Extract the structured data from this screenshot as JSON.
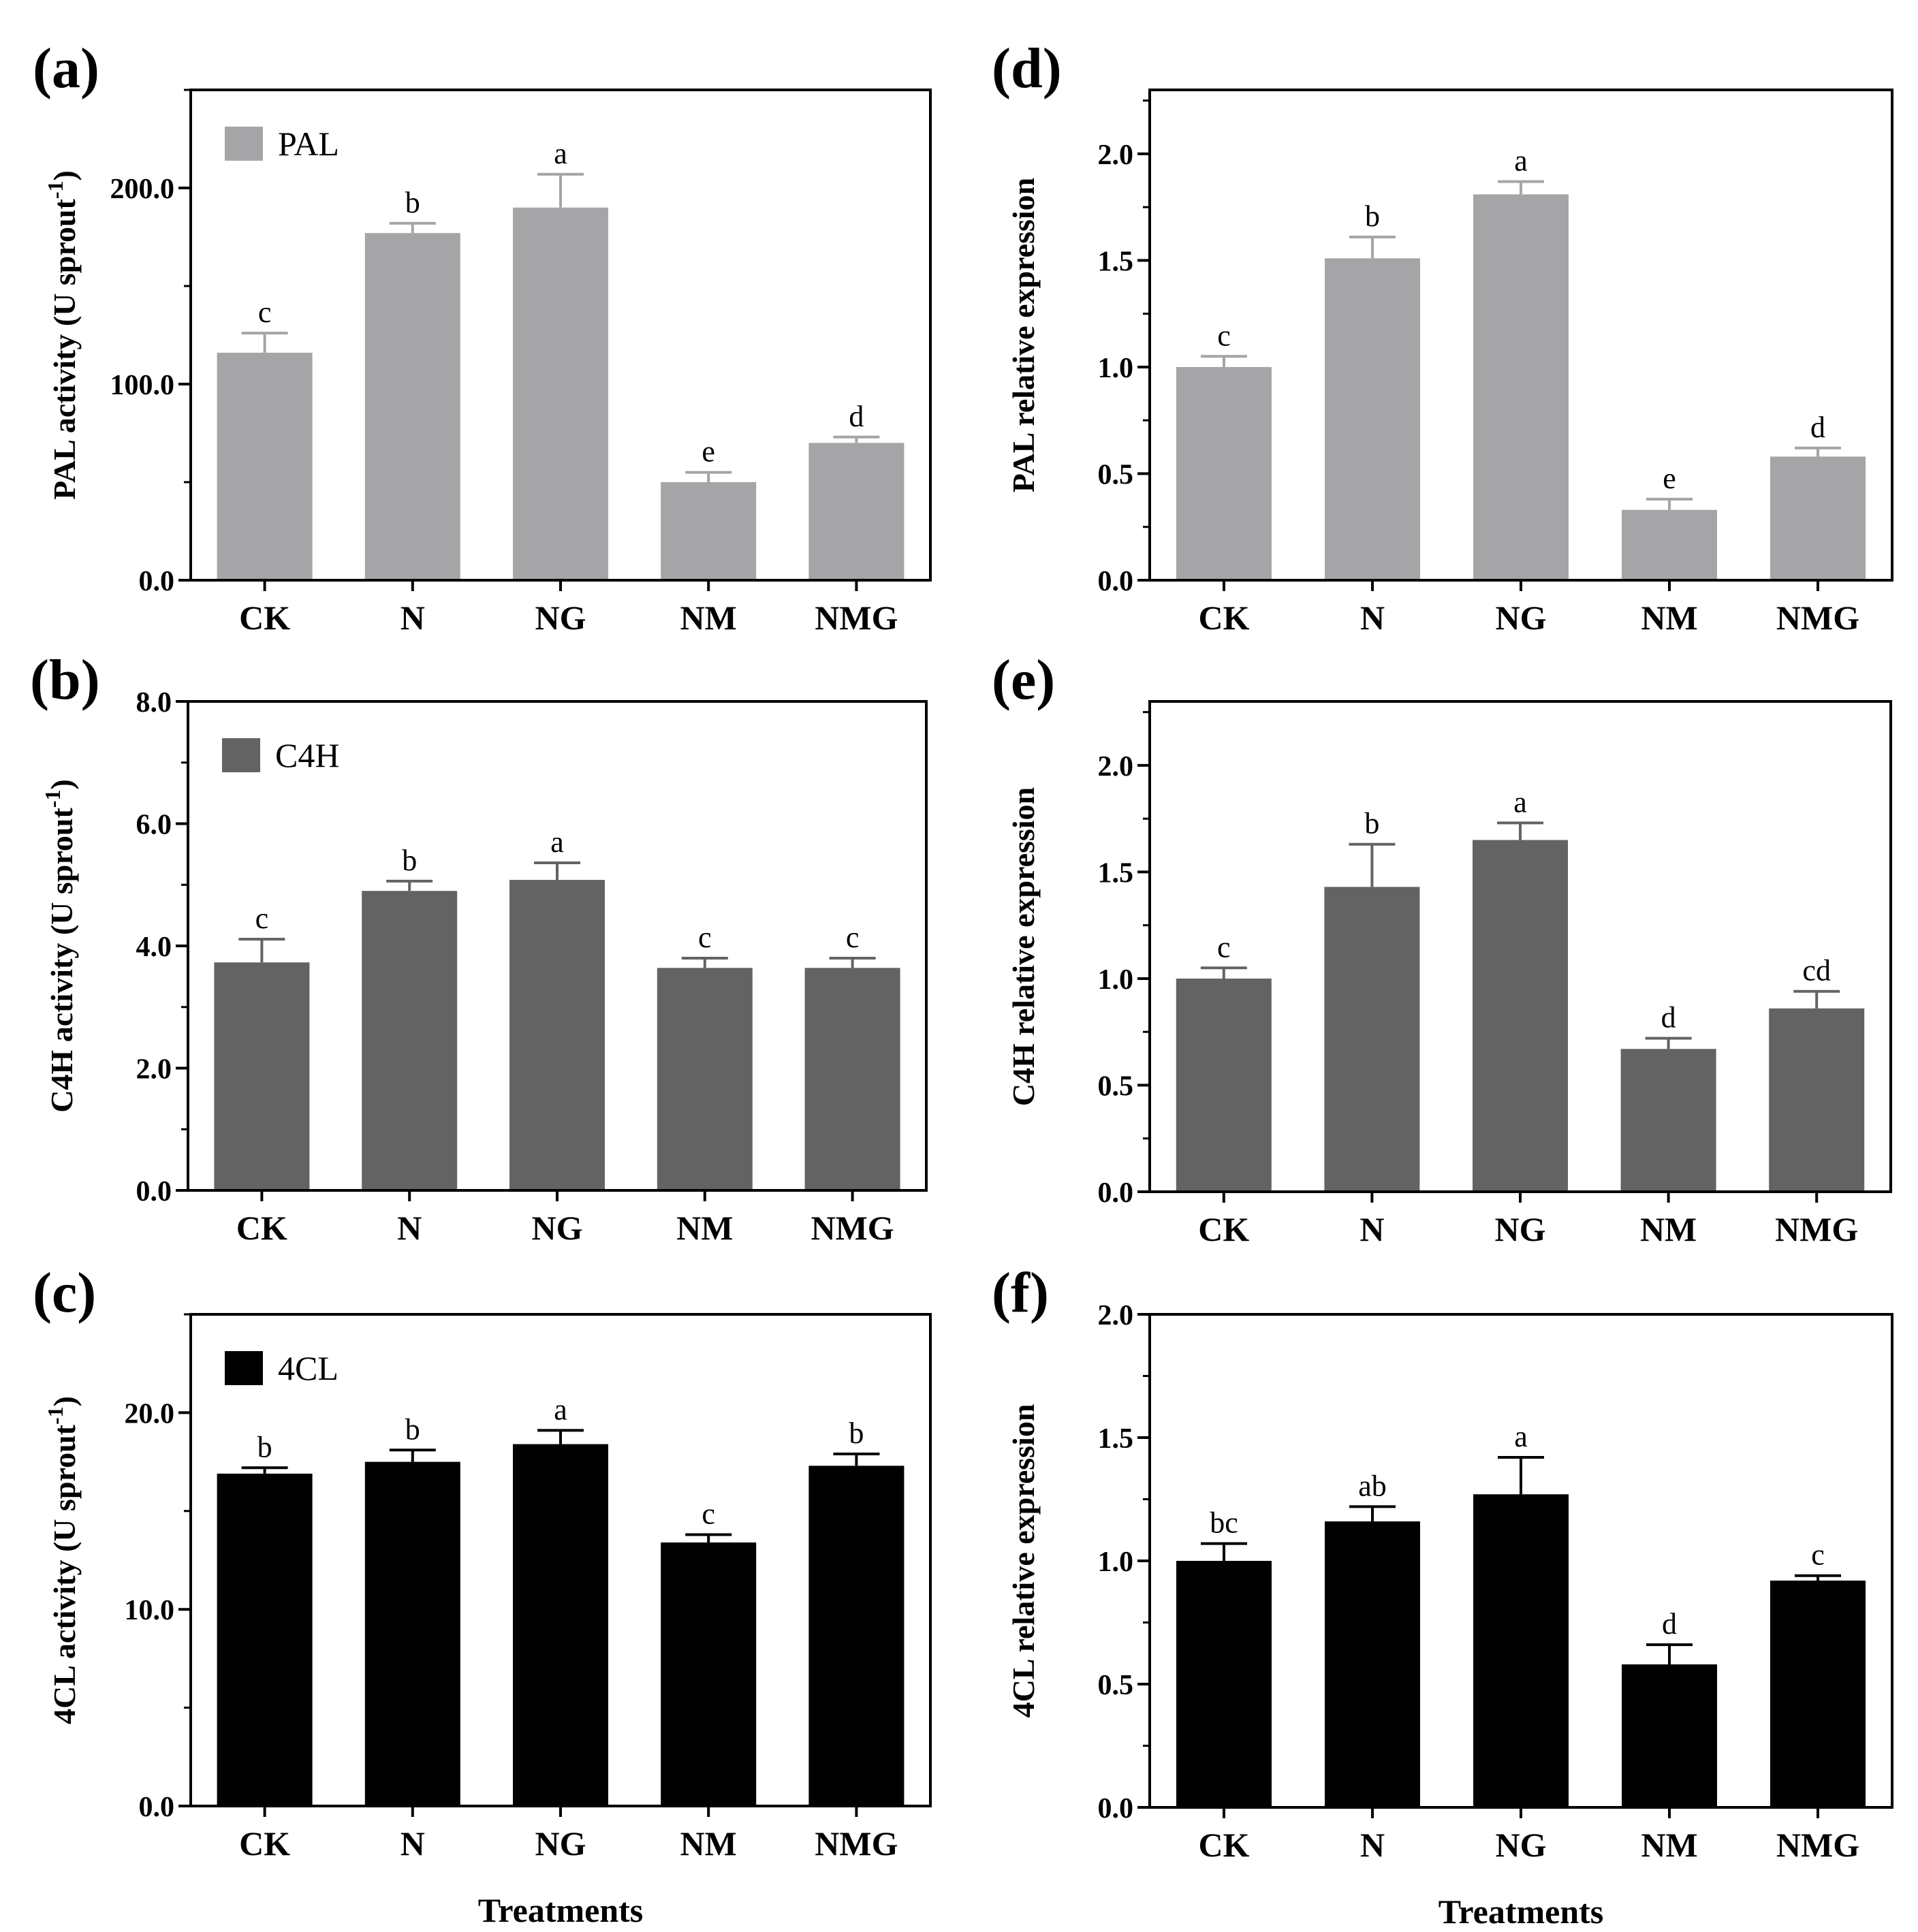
{
  "chart_data": [
    {
      "panel": "(a)",
      "type": "bar",
      "legend": "PAL",
      "color": "#a5a5a7",
      "categories": [
        "CK",
        "N",
        "NG",
        "NM",
        "NMG"
      ],
      "values": [
        116,
        177,
        190,
        50,
        70
      ],
      "errors": [
        10,
        5,
        17,
        5,
        3
      ],
      "significance": [
        "c",
        "b",
        "a",
        "e",
        "d"
      ],
      "ylabel": "PAL activity (U sprout",
      "ylabel_sup": "-1",
      "ylabel_close": ")",
      "ylim": [
        0,
        250
      ],
      "yticks": [
        0,
        100,
        200
      ],
      "ytick_labels": [
        "0.0",
        "100.0",
        "200.0"
      ],
      "minor_step": 50,
      "xlabel": ""
    },
    {
      "panel": "(b)",
      "type": "bar",
      "legend": "C4H",
      "color": "#636363",
      "categories": [
        "CK",
        "N",
        "NG",
        "NM",
        "NMG"
      ],
      "values": [
        3.73,
        4.9,
        5.08,
        3.64,
        3.64
      ],
      "errors": [
        0.38,
        0.16,
        0.28,
        0.16,
        0.16
      ],
      "significance": [
        "c",
        "b",
        "a",
        "c",
        "c"
      ],
      "ylabel": "C4H activity (U sprout",
      "ylabel_sup": "-1",
      "ylabel_close": ")",
      "ylim": [
        0,
        8
      ],
      "yticks": [
        0,
        2,
        4,
        6,
        8
      ],
      "ytick_labels": [
        "0.0",
        "2.0",
        "4.0",
        "6.0",
        "8.0"
      ],
      "minor_step": 1,
      "xlabel": ""
    },
    {
      "panel": "(c)",
      "type": "bar",
      "legend": "4CL",
      "color": "#000000",
      "categories": [
        "CK",
        "N",
        "NG",
        "NM",
        "NMG"
      ],
      "values": [
        16.9,
        17.5,
        18.4,
        13.4,
        17.3
      ],
      "errors": [
        0.3,
        0.6,
        0.7,
        0.4,
        0.6
      ],
      "significance": [
        "b",
        "b",
        "a",
        "c",
        "b"
      ],
      "ylabel": "4CL activity (U sprout",
      "ylabel_sup": "-1",
      "ylabel_close": ")",
      "ylim": [
        0,
        25
      ],
      "yticks": [
        0,
        10,
        20
      ],
      "ytick_labels": [
        "0.0",
        "10.0",
        "20.0"
      ],
      "minor_step": 5,
      "xlabel": "Treatments"
    },
    {
      "panel": "(d)",
      "type": "bar",
      "legend": "",
      "color": "#a5a5a7",
      "categories": [
        "CK",
        "N",
        "NG",
        "NM",
        "NMG"
      ],
      "values": [
        1.0,
        1.51,
        1.81,
        0.33,
        0.58
      ],
      "errors": [
        0.05,
        0.1,
        0.06,
        0.05,
        0.04
      ],
      "significance": [
        "c",
        "b",
        "a",
        "e",
        "d"
      ],
      "ylabel": "PAL relative expression",
      "ylabel_sup": "",
      "ylabel_close": "",
      "ylim": [
        0,
        2.3
      ],
      "yticks": [
        0,
        0.5,
        1.0,
        1.5,
        2.0
      ],
      "ytick_labels": [
        "0.0",
        "0.5",
        "1.0",
        "1.5",
        "2.0"
      ],
      "minor_step": 0.25,
      "xlabel": ""
    },
    {
      "panel": "(e)",
      "type": "bar",
      "legend": "",
      "color": "#636363",
      "categories": [
        "CK",
        "N",
        "NG",
        "NM",
        "NMG"
      ],
      "values": [
        1.0,
        1.43,
        1.65,
        0.67,
        0.86
      ],
      "errors": [
        0.05,
        0.2,
        0.08,
        0.05,
        0.08
      ],
      "significance": [
        "c",
        "b",
        "a",
        "d",
        "cd"
      ],
      "ylabel": "C4H relative expression",
      "ylabel_sup": "",
      "ylabel_close": "",
      "ylim": [
        0,
        2.3
      ],
      "yticks": [
        0,
        0.5,
        1.0,
        1.5,
        2.0
      ],
      "ytick_labels": [
        "0.0",
        "0.5",
        "1.0",
        "1.5",
        "2.0"
      ],
      "minor_step": 0.25,
      "xlabel": ""
    },
    {
      "panel": "(f)",
      "type": "bar",
      "legend": "",
      "color": "#000000",
      "categories": [
        "CK",
        "N",
        "NG",
        "NM",
        "NMG"
      ],
      "values": [
        1.0,
        1.16,
        1.27,
        0.58,
        0.92
      ],
      "errors": [
        0.07,
        0.06,
        0.15,
        0.08,
        0.02
      ],
      "significance": [
        "bc",
        "ab",
        "a",
        "d",
        "c"
      ],
      "ylabel": "4CL relative expression",
      "ylabel_sup": "",
      "ylabel_close": "",
      "ylim": [
        0,
        2.0
      ],
      "yticks": [
        0,
        0.5,
        1.0,
        1.5,
        2.0
      ],
      "ytick_labels": [
        "0.0",
        "0.5",
        "1.0",
        "1.5",
        "2.0"
      ],
      "minor_step": 0.25,
      "xlabel": "Treatments"
    }
  ]
}
